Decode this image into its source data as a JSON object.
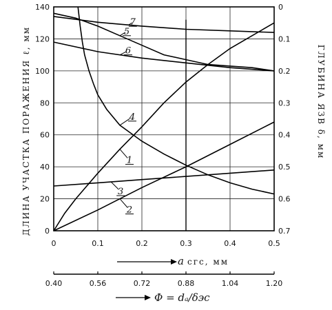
{
  "chart_data": {
    "type": "line",
    "x_axis": {
      "symbol": "a",
      "label": "a",
      "label_suffix": "cгс, мм",
      "ticks": [
        "0",
        "0.1",
        "0.2",
        "0.3",
        "0.4",
        "0.5"
      ],
      "range": [
        0,
        0.5
      ]
    },
    "x_axis_secondary": {
      "label": "Φ = dₐ/δэс",
      "ticks": [
        "0.40",
        "0.56",
        "0.72",
        "0.88",
        "1.04",
        "1.20"
      ],
      "range": [
        0.4,
        1.2
      ]
    },
    "y_left": {
      "label": "ДЛИНА УЧАСТКА ПОРАЖЕНИЯ ℓ, мм",
      "ticks": [
        "0",
        "20",
        "40",
        "60",
        "80",
        "100",
        "120",
        "140"
      ],
      "range": [
        0,
        140
      ]
    },
    "y_right": {
      "label": "ГЛУБИНА ЯЗВ δ, мм",
      "ticks": [
        "0",
        "0.1",
        "0.2",
        "0.3",
        "0.4",
        "0.5",
        "0.6",
        "0.7"
      ],
      "range": [
        0,
        0.7
      ]
    },
    "grid": true,
    "vertical_marker_x": 0.3,
    "series": [
      {
        "name": "1",
        "axis": "left",
        "x": [
          0,
          0.025,
          0.05,
          0.075,
          0.1,
          0.15,
          0.2,
          0.25,
          0.3,
          0.35,
          0.4,
          0.45,
          0.5
        ],
        "y": [
          0,
          11,
          20,
          28,
          36,
          51,
          65,
          80,
          93,
          104,
          114,
          122,
          130
        ]
      },
      {
        "name": "2",
        "axis": "left",
        "x": [
          0,
          0.1,
          0.2,
          0.3,
          0.4,
          0.5
        ],
        "y": [
          0,
          13,
          27,
          40,
          54,
          68
        ]
      },
      {
        "name": "3",
        "axis": "left",
        "x": [
          0,
          0.1,
          0.2,
          0.3,
          0.4,
          0.5
        ],
        "y": [
          28,
          30,
          32,
          34,
          36,
          38
        ]
      },
      {
        "name": "4",
        "axis": "left",
        "x": [
          0.055,
          0.06,
          0.065,
          0.07,
          0.08,
          0.09,
          0.1,
          0.12,
          0.15,
          0.2,
          0.25,
          0.3,
          0.35,
          0.4,
          0.45,
          0.5
        ],
        "y": [
          140,
          128,
          118,
          110,
          100,
          92,
          85,
          76,
          66,
          56,
          48,
          41,
          35,
          30,
          26,
          23
        ]
      },
      {
        "name": "5",
        "axis": "right",
        "x": [
          0,
          0.05,
          0.1,
          0.15,
          0.2,
          0.25,
          0.3,
          0.35,
          0.4,
          0.45,
          0.5
        ],
        "y": [
          0.02,
          0.035,
          0.06,
          0.09,
          0.12,
          0.15,
          0.165,
          0.18,
          0.185,
          0.19,
          0.2
        ]
      },
      {
        "name": "6",
        "axis": "right",
        "x": [
          0,
          0.1,
          0.2,
          0.3,
          0.4,
          0.5
        ],
        "y": [
          0.11,
          0.14,
          0.16,
          0.175,
          0.19,
          0.2
        ]
      },
      {
        "name": "7",
        "axis": "right",
        "x": [
          0,
          0.1,
          0.2,
          0.3,
          0.4,
          0.5
        ],
        "y": [
          0.03,
          0.048,
          0.06,
          0.07,
          0.075,
          0.08
        ]
      }
    ]
  }
}
